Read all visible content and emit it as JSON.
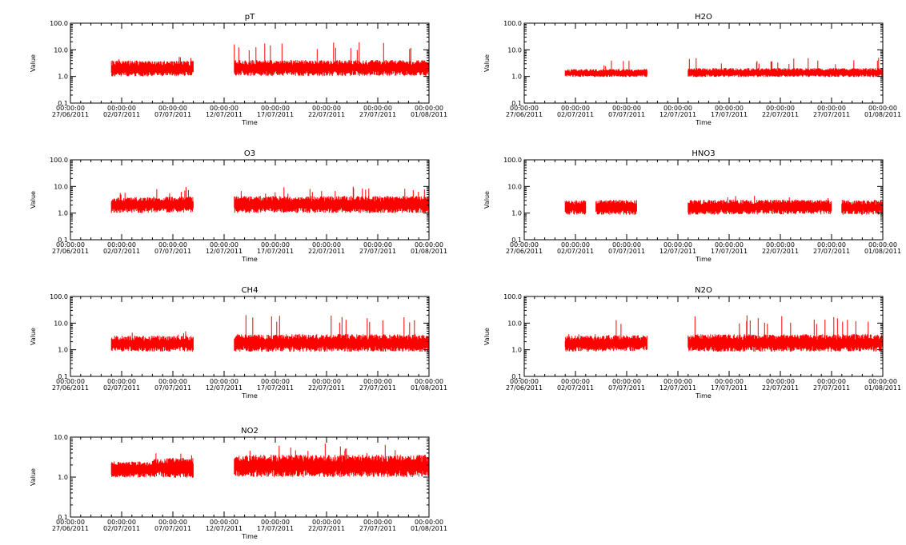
{
  "colors": {
    "series": "#ff0000",
    "axis": "#000000",
    "background": "#ffffff"
  },
  "chart_data": [
    {
      "type": "line",
      "title": "pT",
      "xlabel": "Time",
      "ylabel": "Value",
      "yscale": "log",
      "ylim": [
        0.1,
        100.0
      ],
      "yticks": [
        "0.1",
        "1.0",
        "10.0",
        "100.0"
      ],
      "xlim": [
        "2011-06-27",
        "2011-08-01"
      ],
      "xticks": [
        {
          "time": "00:00:00",
          "date": "27/06/2011"
        },
        {
          "time": "00:00:00",
          "date": "02/07/2011"
        },
        {
          "time": "00:00:00",
          "date": "07/07/2011"
        },
        {
          "time": "00:00:00",
          "date": "12/07/2011"
        },
        {
          "time": "00:00:00",
          "date": "17/07/2011"
        },
        {
          "time": "00:00:00",
          "date": "22/07/2011"
        },
        {
          "time": "00:00:00",
          "date": "27/07/2011"
        },
        {
          "time": "00:00:00",
          "date": "01/08/2011"
        }
      ],
      "segments": [
        {
          "start": "2011-07-01",
          "end": "2011-07-05",
          "base": 2.0,
          "spread": 0.3,
          "spike": 5.0
        },
        {
          "start": "2011-07-05",
          "end": "2011-07-09",
          "base": 2.0,
          "spread": 0.28,
          "spike": 6.0
        },
        {
          "start": "2011-07-13",
          "end": "2011-08-01",
          "base": 2.1,
          "spread": 0.3,
          "spike": 20.0
        }
      ]
    },
    {
      "type": "line",
      "title": "H2O",
      "xlabel": "Time",
      "ylabel": "Value",
      "yscale": "log",
      "ylim": [
        0.1,
        100.0
      ],
      "yticks": [
        "0.1",
        "1.0",
        "10.0",
        "100.0"
      ],
      "xlim": [
        "2011-06-27",
        "2011-08-01"
      ],
      "xticks": [
        {
          "time": "00:00:00",
          "date": "27/06/2011"
        },
        {
          "time": "00:00:00",
          "date": "02/07/2011"
        },
        {
          "time": "00:00:00",
          "date": "07/07/2011"
        },
        {
          "time": "00:00:00",
          "date": "12/07/2011"
        },
        {
          "time": "00:00:00",
          "date": "17/07/2011"
        },
        {
          "time": "00:00:00",
          "date": "22/07/2011"
        },
        {
          "time": "00:00:00",
          "date": "27/07/2011"
        },
        {
          "time": "00:00:00",
          "date": "01/08/2011"
        }
      ],
      "segments": [
        {
          "start": "2011-07-01",
          "end": "2011-07-05",
          "base": 1.35,
          "spread": 0.15,
          "spike": 3.0
        },
        {
          "start": "2011-07-05",
          "end": "2011-07-09",
          "base": 1.35,
          "spread": 0.15,
          "spike": 5.0
        },
        {
          "start": "2011-07-13",
          "end": "2011-08-01",
          "base": 1.4,
          "spread": 0.17,
          "spike": 5.0
        }
      ]
    },
    {
      "type": "line",
      "title": "O3",
      "xlabel": "Time",
      "ylabel": "Value",
      "yscale": "log",
      "ylim": [
        0.1,
        100.0
      ],
      "yticks": [
        "0.1",
        "1.0",
        "10.0",
        "100.0"
      ],
      "xlim": [
        "2011-06-27",
        "2011-08-01"
      ],
      "xticks": [
        {
          "time": "00:00:00",
          "date": "27/06/2011"
        },
        {
          "time": "00:00:00",
          "date": "02/07/2011"
        },
        {
          "time": "00:00:00",
          "date": "07/07/2011"
        },
        {
          "time": "00:00:00",
          "date": "12/07/2011"
        },
        {
          "time": "00:00:00",
          "date": "17/07/2011"
        },
        {
          "time": "00:00:00",
          "date": "22/07/2011"
        },
        {
          "time": "00:00:00",
          "date": "27/07/2011"
        },
        {
          "time": "00:00:00",
          "date": "01/08/2011"
        }
      ],
      "segments": [
        {
          "start": "2011-07-01",
          "end": "2011-07-05",
          "base": 2.0,
          "spread": 0.3,
          "spike": 7.0
        },
        {
          "start": "2011-07-05",
          "end": "2011-07-09",
          "base": 2.1,
          "spread": 0.3,
          "spike": 10.0
        },
        {
          "start": "2011-07-13",
          "end": "2011-08-01",
          "base": 2.1,
          "spread": 0.32,
          "spike": 10.0
        }
      ]
    },
    {
      "type": "line",
      "title": "HNO3",
      "xlabel": "Time",
      "ylabel": "Value",
      "yscale": "log",
      "ylim": [
        0.1,
        100.0
      ],
      "yticks": [
        "0.1",
        "1.0",
        "10.0",
        "100.0"
      ],
      "xlim": [
        "2011-06-27",
        "2011-08-01"
      ],
      "xticks": [
        {
          "time": "00:00:00",
          "date": "27/06/2011"
        },
        {
          "time": "00:00:00",
          "date": "02/07/2011"
        },
        {
          "time": "00:00:00",
          "date": "07/07/2011"
        },
        {
          "time": "00:00:00",
          "date": "12/07/2011"
        },
        {
          "time": "00:00:00",
          "date": "17/07/2011"
        },
        {
          "time": "00:00:00",
          "date": "22/07/2011"
        },
        {
          "time": "00:00:00",
          "date": "27/07/2011"
        },
        {
          "time": "00:00:00",
          "date": "01/08/2011"
        }
      ],
      "segments": [
        {
          "start": "2011-07-01",
          "end": "2011-07-03",
          "base": 1.65,
          "spread": 0.28,
          "spike": 3.0
        },
        {
          "start": "2011-07-04",
          "end": "2011-07-05",
          "base": 1.65,
          "spread": 0.28,
          "spike": 3.0
        },
        {
          "start": "2011-07-05",
          "end": "2011-07-08",
          "base": 1.65,
          "spread": 0.28,
          "spike": 3.0
        },
        {
          "start": "2011-07-13",
          "end": "2011-07-16",
          "base": 1.65,
          "spread": 0.28,
          "spike": 3.0
        },
        {
          "start": "2011-07-16",
          "end": "2011-07-27",
          "base": 1.7,
          "spread": 0.28,
          "spike": 5.0
        },
        {
          "start": "2011-07-28",
          "end": "2011-08-01",
          "base": 1.65,
          "spread": 0.28,
          "spike": 3.0
        }
      ]
    },
    {
      "type": "line",
      "title": "CH4",
      "xlabel": "Time",
      "ylabel": "Value",
      "yscale": "log",
      "ylim": [
        0.1,
        100.0
      ],
      "yticks": [
        "0.1",
        "1.0",
        "10.0",
        "100.0"
      ],
      "xlim": [
        "2011-06-27",
        "2011-08-01"
      ],
      "xticks": [
        {
          "time": "00:00:00",
          "date": "27/06/2011"
        },
        {
          "time": "00:00:00",
          "date": "02/07/2011"
        },
        {
          "time": "00:00:00",
          "date": "07/07/2011"
        },
        {
          "time": "00:00:00",
          "date": "12/07/2011"
        },
        {
          "time": "00:00:00",
          "date": "17/07/2011"
        },
        {
          "time": "00:00:00",
          "date": "22/07/2011"
        },
        {
          "time": "00:00:00",
          "date": "27/07/2011"
        },
        {
          "time": "00:00:00",
          "date": "01/08/2011"
        }
      ],
      "segments": [
        {
          "start": "2011-07-01",
          "end": "2011-07-05",
          "base": 1.7,
          "spread": 0.3,
          "spike": 5.0
        },
        {
          "start": "2011-07-05",
          "end": "2011-07-09",
          "base": 1.7,
          "spread": 0.3,
          "spike": 6.0
        },
        {
          "start": "2011-07-13",
          "end": "2011-08-01",
          "base": 1.8,
          "spread": 0.33,
          "spike": 20.0
        }
      ]
    },
    {
      "type": "line",
      "title": "N2O",
      "xlabel": "Time",
      "ylabel": "Value",
      "yscale": "log",
      "ylim": [
        0.1,
        100.0
      ],
      "yticks": [
        "0.1",
        "1.0",
        "10.0",
        "100.0"
      ],
      "xlim": [
        "2011-06-27",
        "2011-08-01"
      ],
      "xticks": [
        {
          "time": "00:00:00",
          "date": "27/06/2011"
        },
        {
          "time": "00:00:00",
          "date": "02/07/2011"
        },
        {
          "time": "00:00:00",
          "date": "07/07/2011"
        },
        {
          "time": "00:00:00",
          "date": "12/07/2011"
        },
        {
          "time": "00:00:00",
          "date": "17/07/2011"
        },
        {
          "time": "00:00:00",
          "date": "22/07/2011"
        },
        {
          "time": "00:00:00",
          "date": "27/07/2011"
        },
        {
          "time": "00:00:00",
          "date": "01/08/2011"
        }
      ],
      "segments": [
        {
          "start": "2011-07-01",
          "end": "2011-07-05",
          "base": 1.7,
          "spread": 0.3,
          "spike": 4.0
        },
        {
          "start": "2011-07-05",
          "end": "2011-07-09",
          "base": 1.8,
          "spread": 0.3,
          "spike": 15.0
        },
        {
          "start": "2011-07-13",
          "end": "2011-08-01",
          "base": 1.8,
          "spread": 0.33,
          "spike": 20.0
        }
      ]
    },
    {
      "type": "line",
      "title": "NO2",
      "xlabel": "Time",
      "ylabel": "Value",
      "yscale": "log",
      "ylim": [
        0.1,
        10.0
      ],
      "yticks": [
        "0.1",
        "1.0",
        "10.0"
      ],
      "xlim": [
        "2011-06-27",
        "2011-08-01"
      ],
      "xticks": [
        {
          "time": "00:00:00",
          "date": "27/06/2011"
        },
        {
          "time": "00:00:00",
          "date": "02/07/2011"
        },
        {
          "time": "00:00:00",
          "date": "07/07/2011"
        },
        {
          "time": "00:00:00",
          "date": "12/07/2011"
        },
        {
          "time": "00:00:00",
          "date": "17/07/2011"
        },
        {
          "time": "00:00:00",
          "date": "22/07/2011"
        },
        {
          "time": "00:00:00",
          "date": "27/07/2011"
        },
        {
          "time": "00:00:00",
          "date": "01/08/2011"
        }
      ],
      "segments": [
        {
          "start": "2011-07-01",
          "end": "2011-07-05",
          "base": 1.55,
          "spread": 0.2,
          "spike": 2.5
        },
        {
          "start": "2011-07-05",
          "end": "2011-07-09",
          "base": 1.7,
          "spread": 0.25,
          "spike": 4.0
        },
        {
          "start": "2011-07-13",
          "end": "2011-08-01",
          "base": 1.9,
          "spread": 0.28,
          "spike": 7.0
        }
      ]
    }
  ]
}
